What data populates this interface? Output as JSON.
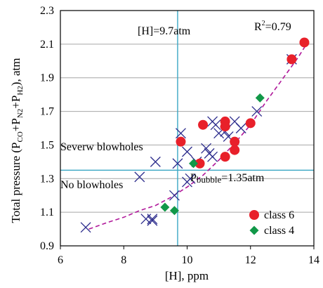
{
  "chart_data": {
    "type": "scatter",
    "xlabel": "[H], ppm",
    "ylabel": {
      "prefix": "Total pressure (P",
      "sub1": "CO",
      "mid1": "+P",
      "sub2": "N2",
      "mid2": "+P",
      "sub3": "H2",
      "suffix": "), atm"
    },
    "xlim": [
      6,
      14
    ],
    "ylim": [
      0.9,
      2.3
    ],
    "xticks": [
      "6",
      "8",
      "10",
      "12",
      "14"
    ],
    "yticks": [
      "0.9",
      "1.1",
      "1.3",
      "1.5",
      "1.7",
      "1.9",
      "2.1",
      "2.3"
    ],
    "grid": "horizontal",
    "legend_position": "bottom-right",
    "colors": {
      "class6": "#e8202a",
      "class4": "#119848",
      "cross": "#2c2c8c",
      "trend": "#b0189a",
      "threshold": "#3aa7c4",
      "grid": "#a6a6a6"
    },
    "annotations": {
      "vline_label": "[H]=9.7atm",
      "vline_x": 9.7,
      "hline_label_main": "P",
      "hline_label_sub": "bubble",
      "hline_label_value": "=1.35atm",
      "hline_y": 1.35,
      "r2_prefix": "R",
      "r2_sup": "2",
      "r2_value": "=0.79",
      "region_upper": "Severw blowholes",
      "region_lower": "No blowholes"
    },
    "series": [
      {
        "name": "class 6",
        "marker": "circle",
        "points": [
          [
            9.8,
            1.52
          ],
          [
            10.4,
            1.39
          ],
          [
            10.5,
            1.62
          ],
          [
            11.2,
            1.64
          ],
          [
            11.2,
            1.61
          ],
          [
            11.2,
            1.43
          ],
          [
            11.5,
            1.52
          ],
          [
            11.5,
            1.47
          ],
          [
            12.0,
            1.63
          ],
          [
            13.3,
            2.01
          ],
          [
            13.7,
            2.11
          ]
        ]
      },
      {
        "name": "class 4",
        "marker": "diamond",
        "points": [
          [
            9.3,
            1.13
          ],
          [
            9.6,
            1.11
          ],
          [
            10.2,
            1.39
          ],
          [
            12.3,
            1.78
          ]
        ]
      },
      {
        "name": "",
        "marker": "cross",
        "points": [
          [
            6.8,
            1.01
          ],
          [
            8.5,
            1.31
          ],
          [
            8.7,
            1.06
          ],
          [
            8.9,
            1.05
          ],
          [
            8.9,
            1.06
          ],
          [
            9.0,
            1.4
          ],
          [
            9.6,
            1.2
          ],
          [
            9.7,
            1.39
          ],
          [
            9.8,
            1.57
          ],
          [
            10.0,
            1.46
          ],
          [
            10.0,
            1.28
          ],
          [
            10.1,
            1.3
          ],
          [
            10.3,
            1.4
          ],
          [
            10.6,
            1.48
          ],
          [
            10.7,
            1.45
          ],
          [
            10.8,
            1.43
          ],
          [
            10.8,
            1.64
          ],
          [
            10.9,
            1.62
          ],
          [
            11.0,
            1.57
          ],
          [
            11.2,
            1.58
          ],
          [
            11.3,
            1.55
          ],
          [
            11.5,
            1.64
          ],
          [
            11.7,
            1.6
          ],
          [
            12.2,
            1.7
          ],
          [
            13.3,
            2.01
          ]
        ]
      }
    ],
    "trendline": {
      "x": [
        6.9,
        7.5,
        8.0,
        8.5,
        9.0,
        9.5,
        10.0,
        10.5,
        11.0,
        11.5,
        12.0,
        12.5,
        13.0,
        13.5,
        13.8
      ],
      "y": [
        1.0,
        1.04,
        1.07,
        1.11,
        1.14,
        1.19,
        1.25,
        1.32,
        1.41,
        1.51,
        1.62,
        1.76,
        1.89,
        2.02,
        2.11
      ]
    },
    "legend": [
      {
        "label": "class 6",
        "marker": "circle"
      },
      {
        "label": "class 4",
        "marker": "diamond"
      }
    ]
  }
}
